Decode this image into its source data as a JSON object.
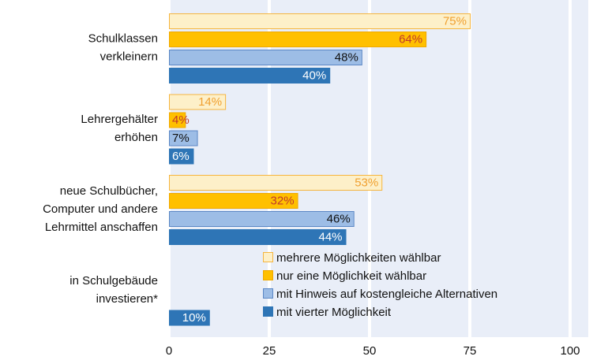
{
  "chart_data": {
    "type": "bar",
    "orientation": "horizontal",
    "categories": [
      [
        "Schulklassen",
        "verkleinern"
      ],
      [
        "Lehrergehälter",
        "erhöhen"
      ],
      [
        "neue Schulbücher,",
        "Computer und andere",
        "Lehrmittel anschaffen"
      ],
      [
        "in Schulgebäude",
        "investieren*"
      ]
    ],
    "series": [
      {
        "name": "mehrere Möglichkeiten wählbar",
        "color": "#fdf0c9",
        "stroke": "#f5b53f",
        "label_color": "#f0a030",
        "values": [
          75,
          14,
          53,
          null
        ],
        "value_labels": [
          "75%",
          "14%",
          "53%",
          null
        ]
      },
      {
        "name": "nur eine Möglichkeit wählbar",
        "color": "#ffc000",
        "stroke": "#f0a800",
        "label_color": "#c0392b",
        "values": [
          64,
          4,
          32,
          null
        ],
        "value_labels": [
          "64%",
          "4%",
          "32%",
          null
        ]
      },
      {
        "name": "mit Hinweis auf kostengleiche Alternativen",
        "color": "#9dbde6",
        "stroke": "#5b87c5",
        "label_color": "#111111",
        "values": [
          48,
          7,
          46,
          null
        ],
        "value_labels": [
          "48%",
          "7%",
          "46%",
          null
        ]
      },
      {
        "name": "mit vierter Möglichkeit",
        "color": "#2e75b6",
        "stroke": "#2e75b6",
        "label_color": "#ffffff",
        "values": [
          40,
          6,
          44,
          10
        ],
        "value_labels": [
          "40%",
          "6%",
          "44%",
          "10%"
        ]
      }
    ],
    "xlim": [
      0,
      100
    ],
    "xticks": [
      0,
      25,
      50,
      75,
      100
    ],
    "grid": true
  }
}
